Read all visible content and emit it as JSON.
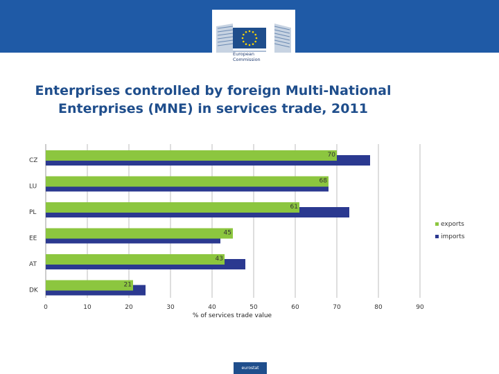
{
  "header": {
    "logo_text_line1": "European",
    "logo_text_line2": "Commission",
    "colors": {
      "band": "#1f5aa6",
      "flag": "#1f4e8c",
      "stars": "#ffd700"
    }
  },
  "chart_data": {
    "type": "bar",
    "orientation": "horizontal",
    "title": "Enterprises controlled by foreign Multi-National Enterprises (MNE) in services trade, 2011",
    "title_line1": "Enterprises controlled by foreign Multi-National",
    "title_line2": "Enterprises (MNE) in services trade, 2011",
    "categories": [
      "CZ",
      "LU",
      "PL",
      "EE",
      "AT",
      "DK"
    ],
    "series": [
      {
        "name": "exports",
        "values": [
          70,
          68,
          61,
          45,
          43,
          21
        ],
        "color": "#8cc63f"
      },
      {
        "name": "imports",
        "values": [
          78,
          68,
          73,
          42,
          48,
          24
        ],
        "color": "#2b3990"
      }
    ],
    "data_labels": [
      70,
      68,
      61,
      45,
      43,
      21
    ],
    "xlabel": "% of services trade value",
    "ylabel": "",
    "xlim": [
      0,
      90
    ],
    "xticks": [
      0,
      10,
      20,
      30,
      40,
      50,
      60,
      70,
      80,
      90
    ],
    "grid": true,
    "legend_position": "right"
  },
  "footer": {
    "badge_text": "eurostat"
  }
}
